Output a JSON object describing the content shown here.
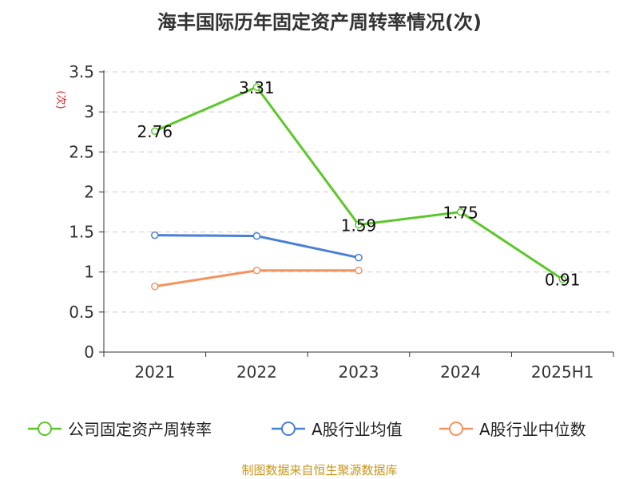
{
  "chart_data": {
    "type": "line",
    "title": "海丰国际历年固定资产周转率情况(次)",
    "ylabel": "(次)",
    "xlabel": "",
    "categories": [
      "2021",
      "2022",
      "2023",
      "2024",
      "2025H1"
    ],
    "ylim": [
      0,
      3.5
    ],
    "yticks": [
      "0",
      "0.5",
      "1",
      "1.5",
      "2",
      "2.5",
      "3",
      "3.5"
    ],
    "grid": true,
    "legend_position": "bottom",
    "series": [
      {
        "name": "公司固定资产周转率",
        "values": [
          2.76,
          3.31,
          1.59,
          1.75,
          0.91
        ],
        "labels": [
          "2.76",
          "3.31",
          "1.59",
          "1.75",
          "0.91"
        ],
        "color": "#5cc72a"
      },
      {
        "name": "A股行业均值",
        "values": [
          1.46,
          1.45,
          1.18,
          null,
          null
        ],
        "color": "#4a7fd6"
      },
      {
        "name": "A股行业中位数",
        "values": [
          0.82,
          1.02,
          1.02,
          null,
          null
        ],
        "color": "#f5935f"
      }
    ]
  },
  "source_text": "制图数据来自恒生聚源数据库",
  "colors": {
    "axis": "#333333",
    "grid": "#cccccc",
    "ylabel": "#e02020"
  }
}
